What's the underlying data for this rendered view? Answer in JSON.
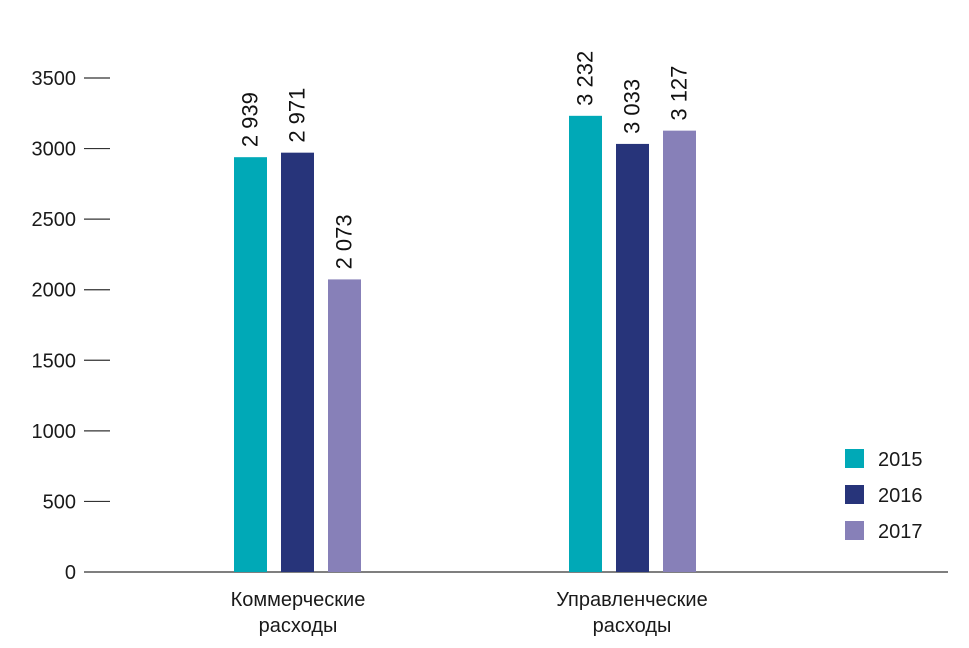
{
  "chart_data": {
    "type": "bar",
    "title": "",
    "xlabel": "",
    "ylabel": "",
    "ylim": [
      0,
      3500
    ],
    "yticks": [
      0,
      500,
      1000,
      1500,
      2000,
      2500,
      3000,
      3500
    ],
    "grid": false,
    "legend_position": "bottom-right",
    "categories": [
      [
        "Коммерческие",
        "расходы"
      ],
      [
        "Управленческие",
        "расходы"
      ]
    ],
    "series": [
      {
        "name": "2015",
        "color": "#00A9B7",
        "values": [
          2939,
          3232
        ],
        "labels": [
          "2 939",
          "3 232"
        ]
      },
      {
        "name": "2016",
        "color": "#27347A",
        "values": [
          2971,
          3033
        ],
        "labels": [
          "2 971",
          "3 033"
        ]
      },
      {
        "name": "2017",
        "color": "#8780B8",
        "values": [
          2073,
          3127
        ],
        "labels": [
          "2 073",
          "3 127"
        ]
      }
    ]
  }
}
